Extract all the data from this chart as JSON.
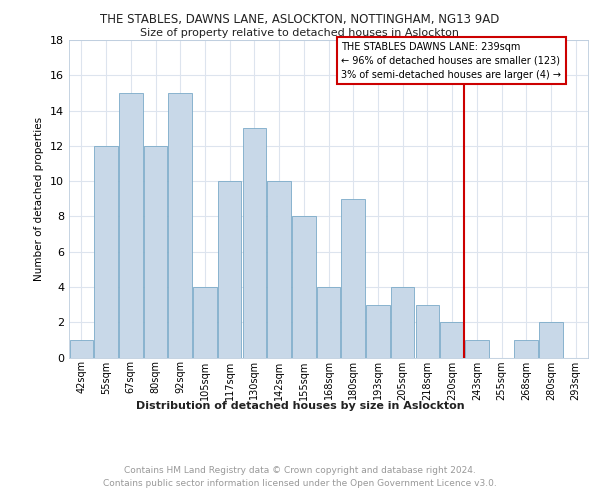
{
  "title": "THE STABLES, DAWNS LANE, ASLOCKTON, NOTTINGHAM, NG13 9AD",
  "subtitle": "Size of property relative to detached houses in Aslockton",
  "xlabel": "Distribution of detached houses by size in Aslockton",
  "ylabel": "Number of detached properties",
  "categories": [
    "42sqm",
    "55sqm",
    "67sqm",
    "80sqm",
    "92sqm",
    "105sqm",
    "117sqm",
    "130sqm",
    "142sqm",
    "155sqm",
    "168sqm",
    "180sqm",
    "193sqm",
    "205sqm",
    "218sqm",
    "230sqm",
    "243sqm",
    "255sqm",
    "268sqm",
    "280sqm",
    "293sqm"
  ],
  "values": [
    1,
    12,
    15,
    12,
    15,
    4,
    10,
    13,
    10,
    8,
    4,
    9,
    3,
    4,
    3,
    2,
    1,
    0,
    1,
    2,
    0
  ],
  "bar_color": "#c8d8e8",
  "bar_edge_color": "#7aaac8",
  "ylim": [
    0,
    18
  ],
  "yticks": [
    0,
    2,
    4,
    6,
    8,
    10,
    12,
    14,
    16,
    18
  ],
  "vline_color": "#cc0000",
  "annotation_title": "THE STABLES DAWNS LANE: 239sqm",
  "annotation_line1": "← 96% of detached houses are smaller (123)",
  "annotation_line2": "3% of semi-detached houses are larger (4) →",
  "annotation_box_color": "#cc0000",
  "footer_line1": "Contains HM Land Registry data © Crown copyright and database right 2024.",
  "footer_line2": "Contains public sector information licensed under the Open Government Licence v3.0.",
  "background_color": "#ffffff",
  "grid_color": "#dde4ee"
}
